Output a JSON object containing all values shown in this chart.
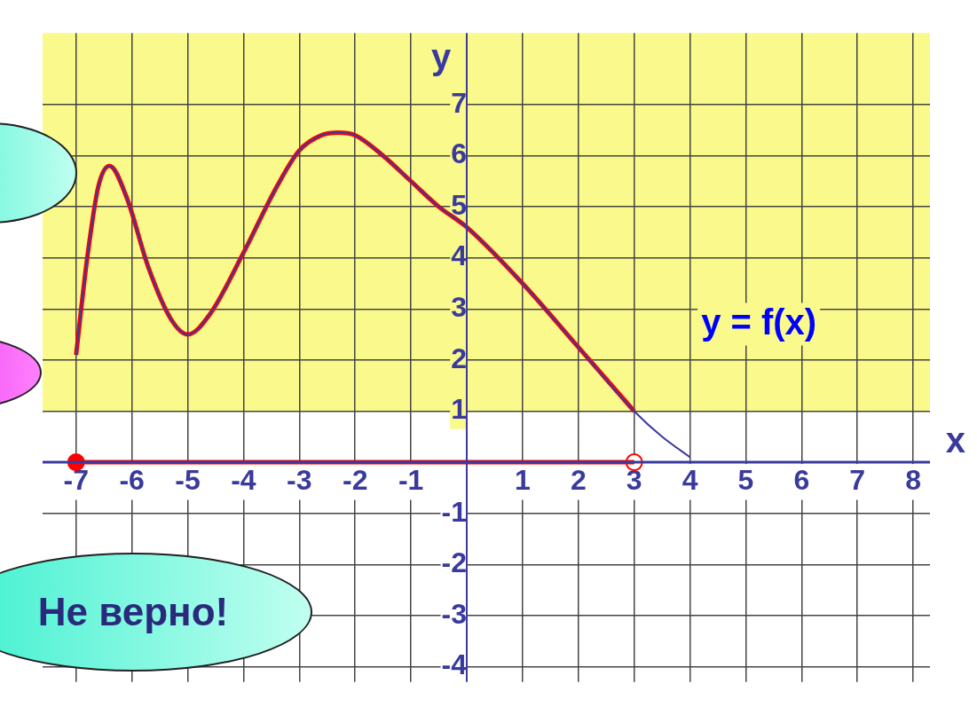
{
  "chart_data": {
    "type": "line",
    "xlabel": "x",
    "ylabel": "y",
    "xlim": [
      -7.6,
      8.3
    ],
    "ylim": [
      -4.3,
      8.4
    ],
    "xticks": [
      -7,
      -6,
      -5,
      -4,
      -3,
      -2,
      -1,
      1,
      2,
      3,
      4,
      5,
      6,
      7,
      8
    ],
    "yticks": [
      -4,
      -3,
      -2,
      -1,
      1,
      2,
      3,
      4,
      5,
      6,
      7
    ],
    "grid": true,
    "legend": false,
    "ref_lines": [
      {
        "axis": "y",
        "value": 0,
        "color": "#3a3a9c"
      },
      {
        "axis": "x",
        "value": 0,
        "color": "#3a3a9c"
      }
    ],
    "bands": [
      {
        "axis": "y",
        "from": 1,
        "to": 8.4,
        "color": "#fafa8c"
      }
    ],
    "series": [
      {
        "color": "#3a3a9c",
        "x": [
          -7,
          -6.8,
          -6.6,
          -6.4,
          -6.1,
          -5.7,
          -5.3,
          -5,
          -4.6,
          -4,
          -3.4,
          -3,
          -2.6,
          -2.3,
          -2,
          -1.5,
          -1,
          -0.5,
          0,
          1,
          2,
          3,
          3.5,
          4
        ],
        "values": [
          2.1,
          4,
          5.4,
          5.8,
          5.2,
          3.8,
          2.8,
          2.5,
          2.9,
          4.1,
          5.4,
          6.1,
          6.4,
          6.45,
          6.4,
          6,
          5.5,
          5,
          4.6,
          3.5,
          2.25,
          1,
          0.5,
          0.1
        ]
      },
      {
        "color": "#ff0000",
        "x": [
          -7,
          -6.8,
          -6.6,
          -6.4,
          -6.1,
          -5.7,
          -5.3,
          -5,
          -4.6,
          -4,
          -3.4,
          -3,
          -2.6,
          -2.3,
          -2,
          -1.5,
          -1,
          -0.5,
          0,
          1,
          2,
          3
        ],
        "values": [
          2.1,
          4,
          5.4,
          5.8,
          5.2,
          3.8,
          2.8,
          2.5,
          2.9,
          4.1,
          5.4,
          6.1,
          6.4,
          6.45,
          6.4,
          6,
          5.5,
          5,
          4.6,
          3.5,
          2.25,
          1
        ]
      },
      {
        "color": "#ff0000",
        "x": [
          -7,
          3
        ],
        "values": [
          0,
          0
        ]
      },
      {
        "type": "scatter",
        "marker": "circle",
        "colors": [
          "#ff0000",
          "#ffffff"
        ],
        "color": "#ff0000",
        "x": [
          -7,
          3
        ],
        "values": [
          0,
          0
        ]
      }
    ],
    "annotations": [
      "y = f(x)",
      "Не верно!"
    ]
  }
}
